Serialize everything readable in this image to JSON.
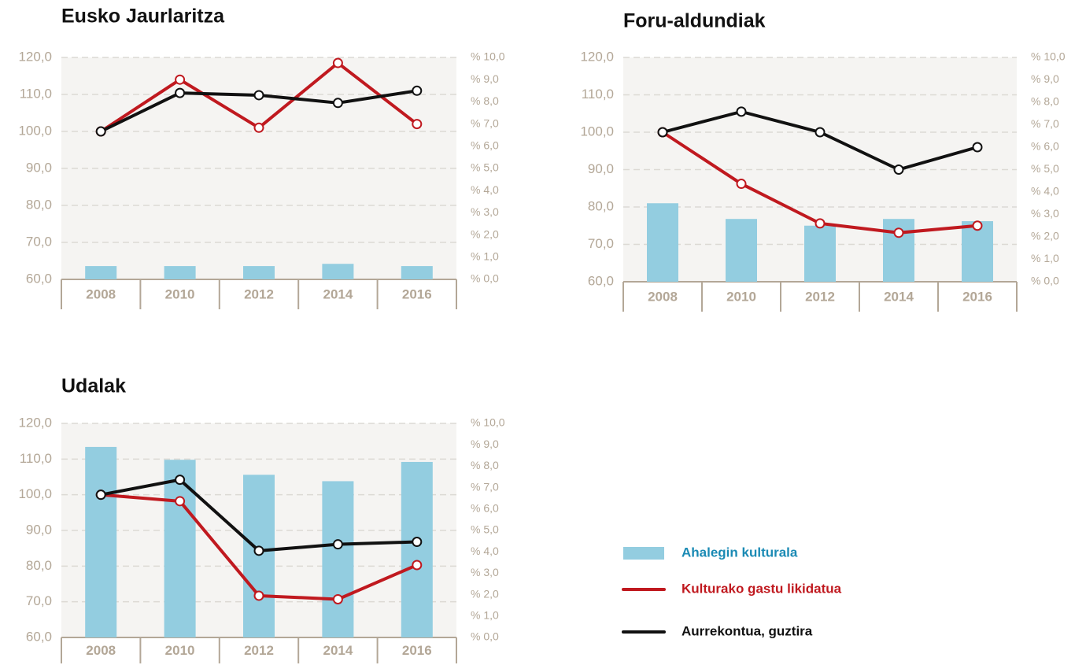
{
  "chart_data": [
    {
      "type": "bar-line",
      "title": "Eusko Jaurlaritza",
      "categories": [
        "2008",
        "2010",
        "2012",
        "2014",
        "2016"
      ],
      "ylim": [
        60,
        120
      ],
      "yticks": [
        {
          "value": 60,
          "label": "60,0"
        },
        {
          "value": 70,
          "label": "70,0"
        },
        {
          "value": 80,
          "label": "80,0"
        },
        {
          "value": 90,
          "label": "90,0"
        },
        {
          "value": 100,
          "label": "100,0"
        },
        {
          "value": 110,
          "label": "110,0"
        },
        {
          "value": 120,
          "label": "120,0"
        }
      ],
      "y2lim": [
        0,
        10
      ],
      "y2ticks": [
        {
          "value": 0,
          "label": "% 0,0"
        },
        {
          "value": 1,
          "label": "% 1,0"
        },
        {
          "value": 2,
          "label": "% 2,0"
        },
        {
          "value": 3,
          "label": "% 3,0"
        },
        {
          "value": 4,
          "label": "% 4,0"
        },
        {
          "value": 5,
          "label": "% 5,0"
        },
        {
          "value": 6,
          "label": "% 6,0"
        },
        {
          "value": 7,
          "label": "% 7,0"
        },
        {
          "value": 8,
          "label": "% 8,0"
        },
        {
          "value": 9,
          "label": "% 9,0"
        },
        {
          "value": 10,
          "label": "% 10,0"
        }
      ],
      "grid": true,
      "series": [
        {
          "name": "Ahalegin kulturala",
          "type": "bar",
          "axis": "y2",
          "color": "#93cde0",
          "values": [
            0.6,
            0.6,
            0.6,
            0.7,
            0.6
          ]
        },
        {
          "name": "Kulturako gastu likidatua",
          "type": "line",
          "color": "#c0191f",
          "values": [
            100,
            114,
            101,
            118.5,
            102
          ]
        },
        {
          "name": "Aurrekontua, guztira",
          "type": "line",
          "color": "#111111",
          "values": [
            100,
            110.4,
            109.8,
            107.7,
            111
          ]
        }
      ]
    },
    {
      "type": "bar-line",
      "title": "Foru-aldundiak",
      "categories": [
        "2008",
        "2010",
        "2012",
        "2014",
        "2016"
      ],
      "ylim": [
        60,
        120
      ],
      "yticks": [
        {
          "value": 60,
          "label": "60,0"
        },
        {
          "value": 70,
          "label": "70,0"
        },
        {
          "value": 80,
          "label": "80,0"
        },
        {
          "value": 90,
          "label": "90,0"
        },
        {
          "value": 100,
          "label": "100,0"
        },
        {
          "value": 110,
          "label": "110,0"
        },
        {
          "value": 120,
          "label": "120,0"
        }
      ],
      "y2lim": [
        0,
        10
      ],
      "y2ticks": [
        {
          "value": 0,
          "label": "% 0,0"
        },
        {
          "value": 1,
          "label": "% 1,0"
        },
        {
          "value": 2,
          "label": "% 2,0"
        },
        {
          "value": 3,
          "label": "% 3,0"
        },
        {
          "value": 4,
          "label": "% 4,0"
        },
        {
          "value": 5,
          "label": "% 5,0"
        },
        {
          "value": 6,
          "label": "% 6,0"
        },
        {
          "value": 7,
          "label": "% 7,0"
        },
        {
          "value": 8,
          "label": "% 8,0"
        },
        {
          "value": 9,
          "label": "% 9,0"
        },
        {
          "value": 10,
          "label": "% 10,0"
        }
      ],
      "grid": true,
      "series": [
        {
          "name": "Ahalegin kulturala",
          "type": "bar",
          "axis": "y2",
          "color": "#93cde0",
          "values": [
            3.5,
            2.8,
            2.5,
            2.8,
            2.7
          ]
        },
        {
          "name": "Kulturako gastu likidatua",
          "type": "line",
          "color": "#c0191f",
          "values": [
            100,
            86.2,
            75.6,
            73.1,
            75
          ]
        },
        {
          "name": "Aurrekontua, guztira",
          "type": "line",
          "color": "#111111",
          "values": [
            100,
            105.5,
            100,
            90,
            96
          ]
        }
      ]
    },
    {
      "type": "bar-line",
      "title": "Udalak",
      "categories": [
        "2008",
        "2010",
        "2012",
        "2014",
        "2016"
      ],
      "ylim": [
        60,
        120
      ],
      "yticks": [
        {
          "value": 60,
          "label": "60,0"
        },
        {
          "value": 70,
          "label": "70,0"
        },
        {
          "value": 80,
          "label": "80,0"
        },
        {
          "value": 90,
          "label": "90,0"
        },
        {
          "value": 100,
          "label": "100,0"
        },
        {
          "value": 110,
          "label": "110,0"
        },
        {
          "value": 120,
          "label": "120,0"
        }
      ],
      "y2lim": [
        0,
        10
      ],
      "y2ticks": [
        {
          "value": 0,
          "label": "% 0,0"
        },
        {
          "value": 1,
          "label": "% 1,0"
        },
        {
          "value": 2,
          "label": "% 2,0"
        },
        {
          "value": 3,
          "label": "% 3,0"
        },
        {
          "value": 4,
          "label": "% 4,0"
        },
        {
          "value": 5,
          "label": "% 5,0"
        },
        {
          "value": 6,
          "label": "% 6,0"
        },
        {
          "value": 7,
          "label": "% 7,0"
        },
        {
          "value": 8,
          "label": "% 8,0"
        },
        {
          "value": 9,
          "label": "% 9,0"
        },
        {
          "value": 10,
          "label": "% 10,0"
        }
      ],
      "grid": true,
      "series": [
        {
          "name": "Ahalegin kulturala",
          "type": "bar",
          "axis": "y2",
          "color": "#93cde0",
          "values": [
            8.9,
            8.3,
            7.6,
            7.3,
            8.2
          ]
        },
        {
          "name": "Kulturako gastu likidatua",
          "type": "line",
          "color": "#c0191f",
          "values": [
            100,
            98.2,
            71.7,
            70.7,
            80.3
          ]
        },
        {
          "name": "Aurrekontua, guztira",
          "type": "line",
          "color": "#111111",
          "values": [
            100,
            104.2,
            84.3,
            86.1,
            86.8
          ]
        }
      ]
    }
  ]
}
